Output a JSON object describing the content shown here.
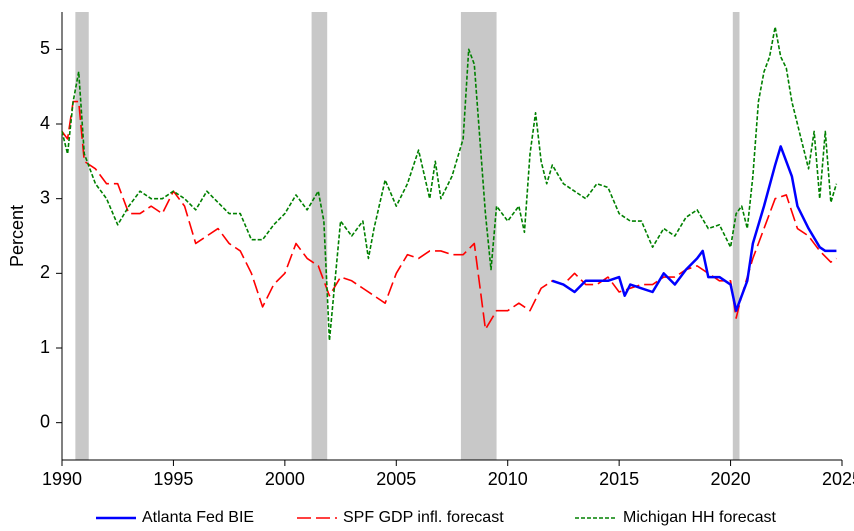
{
  "chart_data": {
    "type": "line",
    "ylabel": "Percent",
    "xlim": [
      1990,
      2025
    ],
    "xticks": [
      1990,
      1995,
      2000,
      2005,
      2010,
      2015,
      2020,
      2025
    ],
    "ylim": [
      -0.5,
      5.5
    ],
    "yticks": [
      0,
      1,
      2,
      3,
      4,
      5
    ],
    "grid": false,
    "shaded_periods": [
      [
        1990.6,
        1991.2
      ],
      [
        2001.2,
        2001.9
      ],
      [
        2007.9,
        2009.5
      ],
      [
        2020.1,
        2020.4
      ]
    ],
    "shade_color": "#c8c8c8",
    "legend": "bottom",
    "series": [
      {
        "name": "Atlanta Fed BIE",
        "color": "#0000ff",
        "linestyle": "solid",
        "x": [
          2012,
          2012.5,
          2013,
          2013.5,
          2014,
          2014.5,
          2015,
          2015.25,
          2015.5,
          2016,
          2016.5,
          2017,
          2017.5,
          2018,
          2018.5,
          2018.75,
          2019,
          2019.5,
          2020,
          2020.25,
          2020.75,
          2021,
          2021.5,
          2022,
          2022.25,
          2022.75,
          2023,
          2023.5,
          2024,
          2024.25,
          2024.75
        ],
        "values": [
          1.9,
          1.85,
          1.75,
          1.9,
          1.9,
          1.9,
          1.95,
          1.7,
          1.85,
          1.8,
          1.75,
          2.0,
          1.85,
          2.05,
          2.2,
          2.3,
          1.95,
          1.95,
          1.85,
          1.5,
          1.9,
          2.4,
          2.9,
          3.45,
          3.7,
          3.3,
          2.9,
          2.6,
          2.35,
          2.3,
          2.3
        ]
      },
      {
        "name": "SPF GDP infl. forecast",
        "color": "#ff0000",
        "linestyle": "dashed",
        "x": [
          1990,
          1990.25,
          1990.5,
          1990.75,
          1991,
          1991.5,
          1992,
          1992.5,
          1993,
          1993.5,
          1994,
          1994.5,
          1995,
          1995.5,
          1996,
          1996.5,
          1997,
          1997.5,
          1998,
          1998.5,
          1999,
          1999.5,
          2000,
          2000.5,
          2001,
          2001.5,
          2002,
          2002.5,
          2003,
          2003.5,
          2004,
          2004.5,
          2005,
          2005.5,
          2006,
          2006.5,
          2007,
          2007.5,
          2008,
          2008.5,
          2009,
          2009.5,
          2010,
          2010.5,
          2011,
          2011.5,
          2012,
          2012.5,
          2013,
          2013.5,
          2014,
          2014.5,
          2015,
          2015.5,
          2016,
          2016.5,
          2017,
          2017.5,
          2018,
          2018.5,
          2019,
          2019.5,
          2020,
          2020.25,
          2020.5,
          2021,
          2021.5,
          2022,
          2022.5,
          2023,
          2023.5,
          2024,
          2024.5,
          2024.75
        ],
        "values": [
          3.9,
          3.8,
          4.3,
          4.3,
          3.5,
          3.4,
          3.2,
          3.2,
          2.8,
          2.8,
          2.9,
          2.8,
          3.1,
          2.9,
          2.4,
          2.5,
          2.6,
          2.4,
          2.3,
          2.0,
          1.55,
          1.85,
          2.0,
          2.4,
          2.2,
          2.1,
          1.7,
          1.95,
          1.9,
          1.8,
          1.7,
          1.6,
          2.0,
          2.25,
          2.2,
          2.3,
          2.3,
          2.25,
          2.25,
          2.4,
          1.25,
          1.5,
          1.5,
          1.6,
          1.5,
          1.8,
          1.9,
          1.85,
          2.0,
          1.85,
          1.85,
          1.95,
          1.75,
          1.8,
          1.85,
          1.85,
          1.95,
          1.95,
          2.05,
          2.1,
          2.0,
          1.9,
          1.9,
          1.4,
          1.7,
          2.2,
          2.6,
          3.0,
          3.05,
          2.6,
          2.5,
          2.3,
          2.15,
          2.2
        ]
      },
      {
        "name": "Michigan HH forecast",
        "color": "#008000",
        "linestyle": "dotted",
        "x": [
          1990,
          1990.25,
          1990.5,
          1990.75,
          1991,
          1991.5,
          1992,
          1992.5,
          1993,
          1993.5,
          1994,
          1994.5,
          1995,
          1995.5,
          1996,
          1996.5,
          1997,
          1997.5,
          1998,
          1998.5,
          1999,
          1999.5,
          2000,
          2000.5,
          2001,
          2001.5,
          2001.75,
          2002,
          2002.5,
          2003,
          2003.5,
          2003.75,
          2004,
          2004.5,
          2005,
          2005.5,
          2006,
          2006.5,
          2006.75,
          2007,
          2007.5,
          2008,
          2008.25,
          2008.5,
          2009,
          2009.25,
          2009.5,
          2010,
          2010.5,
          2010.75,
          2011,
          2011.25,
          2011.5,
          2011.75,
          2012,
          2012.5,
          2013,
          2013.5,
          2014,
          2014.5,
          2015,
          2015.5,
          2016,
          2016.5,
          2017,
          2017.5,
          2018,
          2018.5,
          2019,
          2019.5,
          2020,
          2020.25,
          2020.5,
          2020.75,
          2021,
          2021.25,
          2021.5,
          2021.75,
          2022,
          2022.25,
          2022.5,
          2022.75,
          2023,
          2023.25,
          2023.5,
          2023.75,
          2024,
          2024.25,
          2024.5,
          2024.75
        ],
        "values": [
          3.9,
          3.6,
          4.3,
          4.7,
          3.6,
          3.2,
          3.0,
          2.65,
          2.9,
          3.1,
          3.0,
          3.0,
          3.1,
          3.0,
          2.85,
          3.1,
          2.95,
          2.8,
          2.8,
          2.45,
          2.45,
          2.65,
          2.8,
          3.05,
          2.85,
          3.1,
          2.7,
          1.1,
          2.7,
          2.5,
          2.7,
          2.2,
          2.6,
          3.25,
          2.9,
          3.2,
          3.65,
          3.0,
          3.5,
          3.0,
          3.3,
          3.8,
          5.0,
          4.8,
          2.8,
          2.05,
          2.9,
          2.7,
          2.9,
          2.55,
          3.6,
          4.15,
          3.5,
          3.2,
          3.45,
          3.2,
          3.1,
          3.0,
          3.2,
          3.15,
          2.8,
          2.7,
          2.7,
          2.35,
          2.6,
          2.5,
          2.75,
          2.85,
          2.6,
          2.65,
          2.35,
          2.8,
          2.9,
          2.6,
          3.3,
          4.3,
          4.7,
          4.9,
          5.3,
          4.9,
          4.75,
          4.3,
          4.0,
          3.7,
          3.4,
          3.9,
          3.0,
          3.9,
          2.95,
          3.2
        ]
      }
    ]
  }
}
